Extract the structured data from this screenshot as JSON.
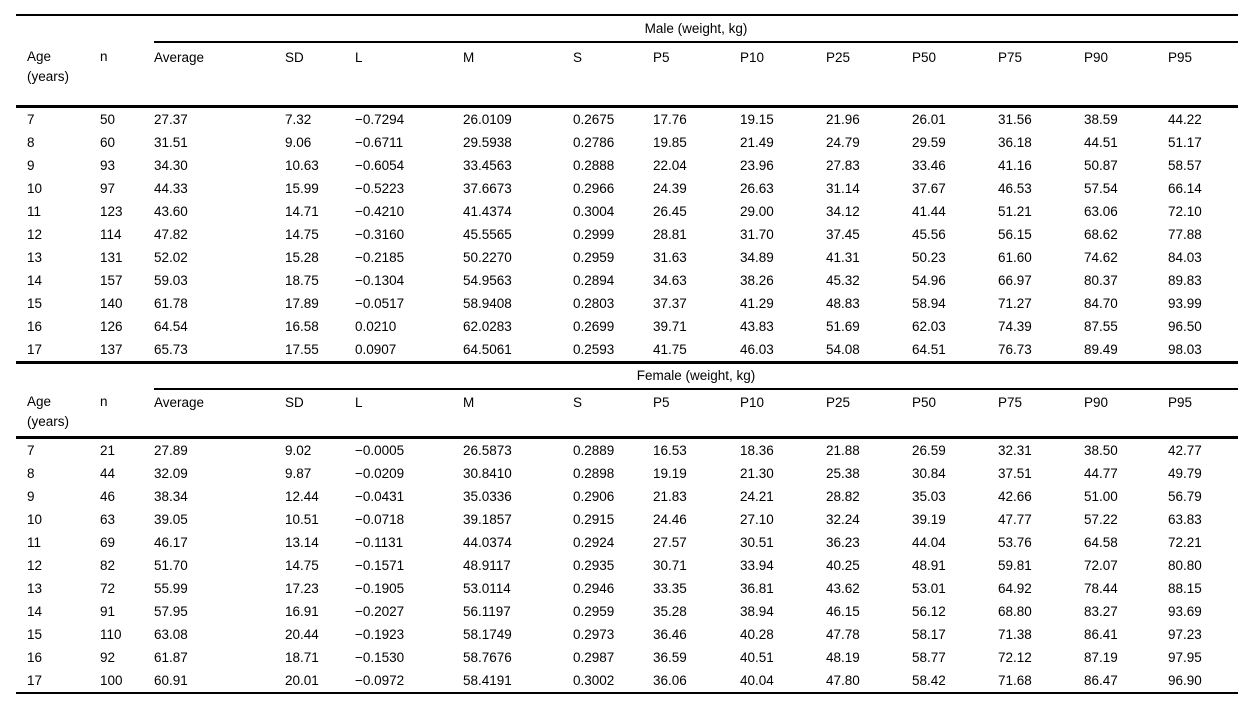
{
  "table": {
    "columns": [
      {
        "id": "age",
        "lines": [
          "Age",
          "(years)"
        ]
      },
      {
        "id": "n",
        "lines": [
          "n"
        ]
      },
      {
        "id": "average",
        "lines": [
          "Average"
        ]
      },
      {
        "id": "sd",
        "lines": [
          "SD"
        ]
      },
      {
        "id": "l",
        "lines": [
          "L"
        ]
      },
      {
        "id": "m",
        "lines": [
          "M"
        ]
      },
      {
        "id": "s",
        "lines": [
          "S"
        ]
      },
      {
        "id": "p5",
        "lines": [
          "P5"
        ]
      },
      {
        "id": "p10",
        "lines": [
          "P10"
        ]
      },
      {
        "id": "p25",
        "lines": [
          "P25"
        ]
      },
      {
        "id": "p50",
        "lines": [
          "P50"
        ]
      },
      {
        "id": "p75",
        "lines": [
          "P75"
        ]
      },
      {
        "id": "p90",
        "lines": [
          "P90"
        ]
      },
      {
        "id": "p95",
        "lines": [
          "P95"
        ]
      }
    ],
    "sections": [
      {
        "id": "male",
        "title": "Male (weight, kg)",
        "rows": [
          [
            "7",
            "50",
            "27.37",
            "7.32",
            "−0.7294",
            "26.0109",
            "0.2675",
            "17.76",
            "19.15",
            "21.96",
            "26.01",
            "31.56",
            "38.59",
            "44.22"
          ],
          [
            "8",
            "60",
            "31.51",
            "9.06",
            "−0.6711",
            "29.5938",
            "0.2786",
            "19.85",
            "21.49",
            "24.79",
            "29.59",
            "36.18",
            "44.51",
            "51.17"
          ],
          [
            "9",
            "93",
            "34.30",
            "10.63",
            "−0.6054",
            "33.4563",
            "0.2888",
            "22.04",
            "23.96",
            "27.83",
            "33.46",
            "41.16",
            "50.87",
            "58.57"
          ],
          [
            "10",
            "97",
            "44.33",
            "15.99",
            "−0.5223",
            "37.6673",
            "0.2966",
            "24.39",
            "26.63",
            "31.14",
            "37.67",
            "46.53",
            "57.54",
            "66.14"
          ],
          [
            "11",
            "123",
            "43.60",
            "14.71",
            "−0.4210",
            "41.4374",
            "0.3004",
            "26.45",
            "29.00",
            "34.12",
            "41.44",
            "51.21",
            "63.06",
            "72.10"
          ],
          [
            "12",
            "114",
            "47.82",
            "14.75",
            "−0.3160",
            "45.5565",
            "0.2999",
            "28.81",
            "31.70",
            "37.45",
            "45.56",
            "56.15",
            "68.62",
            "77.88"
          ],
          [
            "13",
            "131",
            "52.02",
            "15.28",
            "−0.2185",
            "50.2270",
            "0.2959",
            "31.63",
            "34.89",
            "41.31",
            "50.23",
            "61.60",
            "74.62",
            "84.03"
          ],
          [
            "14",
            "157",
            "59.03",
            "18.75",
            "−0.1304",
            "54.9563",
            "0.2894",
            "34.63",
            "38.26",
            "45.32",
            "54.96",
            "66.97",
            "80.37",
            "89.83"
          ],
          [
            "15",
            "140",
            "61.78",
            "17.89",
            "−0.0517",
            "58.9408",
            "0.2803",
            "37.37",
            "41.29",
            "48.83",
            "58.94",
            "71.27",
            "84.70",
            "93.99"
          ],
          [
            "16",
            "126",
            "64.54",
            "16.58",
            "0.0210",
            "62.0283",
            "0.2699",
            "39.71",
            "43.83",
            "51.69",
            "62.03",
            "74.39",
            "87.55",
            "96.50"
          ],
          [
            "17",
            "137",
            "65.73",
            "17.55",
            "0.0907",
            "64.5061",
            "0.2593",
            "41.75",
            "46.03",
            "54.08",
            "64.51",
            "76.73",
            "89.49",
            "98.03"
          ]
        ]
      },
      {
        "id": "female",
        "title": "Female (weight, kg)",
        "rows": [
          [
            "7",
            "21",
            "27.89",
            "9.02",
            "−0.0005",
            "26.5873",
            "0.2889",
            "16.53",
            "18.36",
            "21.88",
            "26.59",
            "32.31",
            "38.50",
            "42.77"
          ],
          [
            "8",
            "44",
            "32.09",
            "9.87",
            "−0.0209",
            "30.8410",
            "0.2898",
            "19.19",
            "21.30",
            "25.38",
            "30.84",
            "37.51",
            "44.77",
            "49.79"
          ],
          [
            "9",
            "46",
            "38.34",
            "12.44",
            "−0.0431",
            "35.0336",
            "0.2906",
            "21.83",
            "24.21",
            "28.82",
            "35.03",
            "42.66",
            "51.00",
            "56.79"
          ],
          [
            "10",
            "63",
            "39.05",
            "10.51",
            "−0.0718",
            "39.1857",
            "0.2915",
            "24.46",
            "27.10",
            "32.24",
            "39.19",
            "47.77",
            "57.22",
            "63.83"
          ],
          [
            "11",
            "69",
            "46.17",
            "13.14",
            "−0.1131",
            "44.0374",
            "0.2924",
            "27.57",
            "30.51",
            "36.23",
            "44.04",
            "53.76",
            "64.58",
            "72.21"
          ],
          [
            "12",
            "82",
            "51.70",
            "14.75",
            "−0.1571",
            "48.9117",
            "0.2935",
            "30.71",
            "33.94",
            "40.25",
            "48.91",
            "59.81",
            "72.07",
            "80.80"
          ],
          [
            "13",
            "72",
            "55.99",
            "17.23",
            "−0.1905",
            "53.0114",
            "0.2946",
            "33.35",
            "36.81",
            "43.62",
            "53.01",
            "64.92",
            "78.44",
            "88.15"
          ],
          [
            "14",
            "91",
            "57.95",
            "16.91",
            "−0.2027",
            "56.1197",
            "0.2959",
            "35.28",
            "38.94",
            "46.15",
            "56.12",
            "68.80",
            "83.27",
            "93.69"
          ],
          [
            "15",
            "110",
            "63.08",
            "20.44",
            "−0.1923",
            "58.1749",
            "0.2973",
            "36.46",
            "40.28",
            "47.78",
            "58.17",
            "71.38",
            "86.41",
            "97.23"
          ],
          [
            "16",
            "92",
            "61.87",
            "18.71",
            "−0.1530",
            "58.7676",
            "0.2987",
            "36.59",
            "40.51",
            "48.19",
            "58.77",
            "72.12",
            "87.19",
            "97.95"
          ],
          [
            "17",
            "100",
            "60.91",
            "20.01",
            "−0.0972",
            "58.4191",
            "0.3002",
            "36.06",
            "40.04",
            "47.80",
            "58.42",
            "71.68",
            "86.47",
            "96.90"
          ]
        ]
      }
    ]
  }
}
